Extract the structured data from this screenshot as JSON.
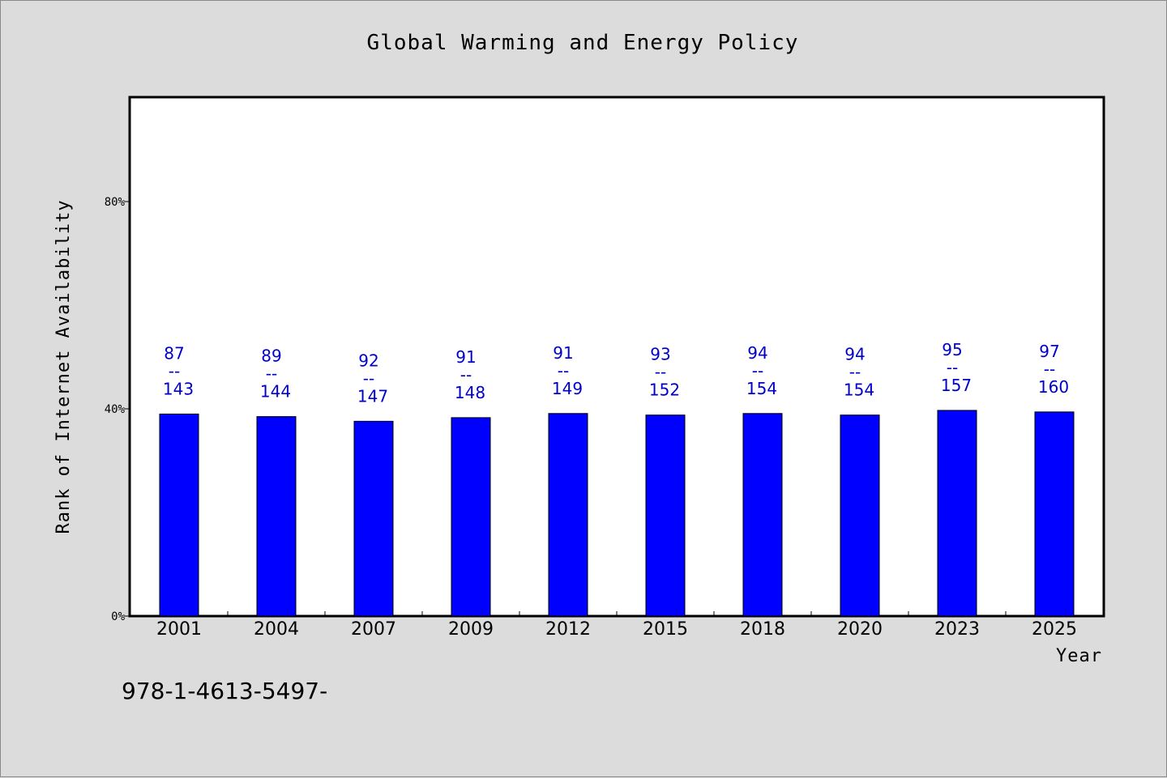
{
  "chart_data": {
    "type": "bar",
    "title": "Global Warming and Energy Policy",
    "xlabel": "Year",
    "ylabel": "Rank of Internet Availability",
    "categories": [
      "2001",
      "2004",
      "2007",
      "2009",
      "2012",
      "2015",
      "2018",
      "2020",
      "2023",
      "2025"
    ],
    "series": [
      {
        "values": [
          39.0,
          38.5,
          37.6,
          38.3,
          39.1,
          38.8,
          39.1,
          38.8,
          39.7,
          39.4
        ],
        "color": "#0000ff"
      }
    ],
    "label_top": [
      "87",
      "89",
      "92",
      "91",
      "91",
      "93",
      "94",
      "94",
      "95",
      "97"
    ],
    "label_separator": "--",
    "label_bottom": [
      "143",
      "144",
      "147",
      "148",
      "149",
      "152",
      "154",
      "154",
      "157",
      "160"
    ],
    "yticks": [
      0,
      40,
      80
    ],
    "ytick_labels": [
      "0%",
      "40%",
      "80%"
    ],
    "ylim": [
      0,
      100
    ],
    "grid": false,
    "legend": "none",
    "footnote": "978-1-4613-5497-",
    "colors": {
      "bar": "#0000ff",
      "label": "#0000cc",
      "background": "#dcdcdc",
      "plot_area": "#ffffff"
    }
  }
}
